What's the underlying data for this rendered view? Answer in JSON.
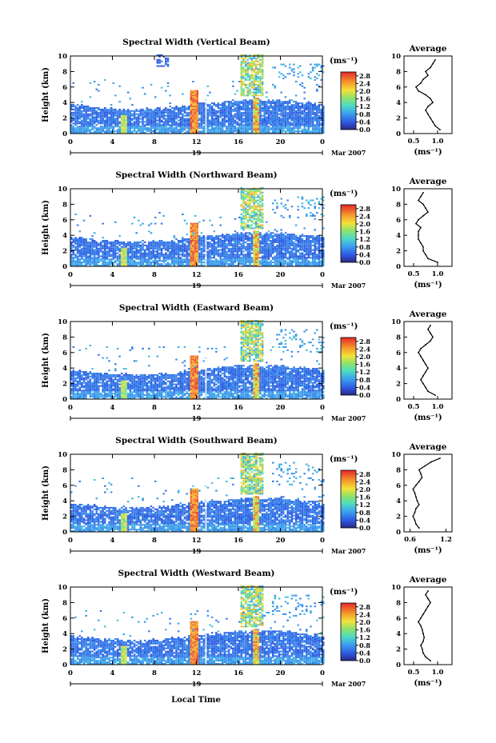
{
  "figure": {
    "xlabel": "Local Time",
    "ylabel": "Height (km)",
    "avg_title": "Average",
    "unit_label": "(ms⁻¹)",
    "day_label": "19",
    "month_label": "Mar 2007"
  },
  "chart_data": [
    {
      "type": "heatmap",
      "title": "Spectral Width (Vertical Beam)",
      "xlabel": "Local Time",
      "ylabel": "Height (km)",
      "x_ticks": [
        "0",
        "4",
        "8",
        "12",
        "16",
        "20",
        "0"
      ],
      "y_ticks": [
        "0",
        "2",
        "4",
        "6",
        "8",
        "10"
      ],
      "xlim": [
        0,
        24
      ],
      "ylim": [
        0,
        10
      ],
      "colorbar": {
        "label": "(ms⁻¹)",
        "ticks": [
          "0.0",
          "0.4",
          "0.8",
          "1.2",
          "1.6",
          "2.0",
          "2.4",
          "2.8"
        ],
        "range": [
          0,
          3.0
        ]
      },
      "average_profile": {
        "title": "Average",
        "xlabel": "(ms⁻¹)",
        "x_ticks": [
          "0.5",
          "1.0"
        ],
        "xlim": [
          0.3,
          1.3
        ],
        "ylim": [
          0,
          10
        ],
        "height": [
          0.5,
          1.0,
          1.5,
          2.0,
          2.5,
          3.0,
          3.5,
          4.0,
          4.5,
          5.0,
          5.5,
          6.0,
          6.5,
          7.0,
          7.5,
          8.0,
          8.5,
          9.0,
          9.5
        ],
        "value": [
          1.05,
          0.95,
          0.9,
          0.85,
          0.8,
          0.75,
          0.8,
          0.9,
          0.85,
          0.75,
          0.6,
          0.55,
          0.65,
          0.7,
          0.8,
          0.75,
          0.85,
          0.9,
          0.95
        ]
      }
    },
    {
      "type": "heatmap",
      "title": "Spectral Width (Northward Beam)",
      "xlabel": "Local Time",
      "ylabel": "Height (km)",
      "x_ticks": [
        "0",
        "4",
        "8",
        "12",
        "16",
        "20",
        "0"
      ],
      "y_ticks": [
        "0",
        "2",
        "4",
        "6",
        "8",
        "10"
      ],
      "xlim": [
        0,
        24
      ],
      "ylim": [
        0,
        10
      ],
      "colorbar": {
        "label": "(ms⁻¹)",
        "ticks": [
          "0.0",
          "0.4",
          "0.8",
          "1.2",
          "1.6",
          "2.0",
          "2.4",
          "2.8"
        ],
        "range": [
          0,
          3.0
        ]
      },
      "average_profile": {
        "title": "Average",
        "xlabel": "(ms⁻¹)",
        "x_ticks": [
          "0.5",
          "1.0"
        ],
        "xlim": [
          0.3,
          1.3
        ],
        "ylim": [
          0,
          10
        ],
        "height": [
          0.5,
          1.0,
          1.5,
          2.0,
          2.5,
          3.0,
          3.5,
          4.0,
          4.5,
          5.0,
          5.5,
          6.0,
          6.5,
          7.0,
          7.5,
          8.0,
          8.5,
          9.0,
          9.5
        ],
        "value": [
          1.0,
          0.8,
          0.75,
          0.7,
          0.7,
          0.65,
          0.6,
          0.6,
          0.6,
          0.65,
          0.55,
          0.6,
          0.7,
          0.8,
          0.75,
          0.7,
          0.6,
          0.65,
          0.7
        ]
      }
    },
    {
      "type": "heatmap",
      "title": "Spectral Width (Eastward Beam)",
      "xlabel": "Local Time",
      "ylabel": "Height (km)",
      "x_ticks": [
        "0",
        "4",
        "8",
        "12",
        "16",
        "20",
        "0"
      ],
      "y_ticks": [
        "0",
        "2",
        "4",
        "6",
        "8",
        "10"
      ],
      "xlim": [
        0,
        24
      ],
      "ylim": [
        0,
        10
      ],
      "colorbar": {
        "label": "(ms⁻¹)",
        "ticks": [
          "0.0",
          "0.4",
          "0.8",
          "1.2",
          "1.6",
          "2.0",
          "2.4",
          "2.8"
        ],
        "range": [
          0,
          3.0
        ]
      },
      "average_profile": {
        "title": "Average",
        "xlabel": "(ms⁻¹)",
        "x_ticks": [
          "0.5",
          "1.0"
        ],
        "xlim": [
          0.3,
          1.3
        ],
        "ylim": [
          0,
          10
        ],
        "height": [
          0.5,
          1.0,
          1.5,
          2.0,
          2.5,
          3.0,
          3.5,
          4.0,
          4.5,
          5.0,
          5.5,
          6.0,
          6.5,
          7.0,
          7.5,
          8.0,
          8.5,
          9.0,
          9.5
        ],
        "value": [
          0.95,
          0.8,
          0.75,
          0.7,
          0.65,
          0.7,
          0.75,
          0.8,
          0.75,
          0.7,
          0.65,
          0.6,
          0.65,
          0.75,
          0.85,
          0.9,
          0.85,
          0.8,
          0.85
        ]
      }
    },
    {
      "type": "heatmap",
      "title": "Spectral Width (Southward Beam)",
      "xlabel": "Local Time",
      "ylabel": "Height (km)",
      "x_ticks": [
        "0",
        "4",
        "8",
        "12",
        "16",
        "20",
        "0"
      ],
      "y_ticks": [
        "0",
        "2",
        "4",
        "6",
        "8",
        "10"
      ],
      "xlim": [
        0,
        24
      ],
      "ylim": [
        0,
        10
      ],
      "colorbar": {
        "label": "(ms⁻¹)",
        "ticks": [
          "0.0",
          "0.4",
          "0.8",
          "1.2",
          "1.6",
          "2.0",
          "2.4",
          "2.8"
        ],
        "range": [
          0,
          3.0
        ]
      },
      "average_profile": {
        "title": "Average",
        "xlabel": "(ms⁻¹)",
        "x_ticks": [
          "0.6",
          "1.2"
        ],
        "xlim": [
          0.5,
          1.3
        ],
        "ylim": [
          0,
          10
        ],
        "height": [
          0.5,
          1.0,
          1.5,
          2.0,
          2.5,
          3.0,
          3.5,
          4.0,
          4.5,
          5.0,
          5.5,
          6.0,
          6.5,
          7.0,
          7.5,
          8.0,
          8.5,
          9.0,
          9.5
        ],
        "value": [
          0.75,
          0.7,
          0.68,
          0.65,
          0.68,
          0.7,
          0.75,
          0.72,
          0.7,
          0.68,
          0.65,
          0.7,
          0.75,
          0.8,
          0.78,
          0.75,
          0.85,
          0.95,
          1.1
        ]
      }
    },
    {
      "type": "heatmap",
      "title": "Spectral Width (Westward Beam)",
      "xlabel": "Local Time",
      "ylabel": "Height (km)",
      "x_ticks": [
        "0",
        "4",
        "8",
        "12",
        "16",
        "20",
        "0"
      ],
      "y_ticks": [
        "0",
        "2",
        "4",
        "6",
        "8",
        "10"
      ],
      "xlim": [
        0,
        24
      ],
      "ylim": [
        0,
        10
      ],
      "colorbar": {
        "label": "(ms⁻¹)",
        "ticks": [
          "0.0",
          "0.4",
          "0.8",
          "1.2",
          "1.6",
          "2.0",
          "2.4",
          "2.8"
        ],
        "range": [
          0,
          3.0
        ]
      },
      "average_profile": {
        "title": "Average",
        "xlabel": "(ms⁻¹)",
        "x_ticks": [
          "0.5",
          "1.0"
        ],
        "xlim": [
          0.3,
          1.3
        ],
        "ylim": [
          0,
          10
        ],
        "height": [
          0.5,
          1.0,
          1.5,
          2.0,
          2.5,
          3.0,
          3.5,
          4.0,
          4.5,
          5.0,
          5.5,
          6.0,
          6.5,
          7.0,
          7.5,
          8.0,
          8.5,
          9.0,
          9.5
        ],
        "value": [
          0.85,
          0.75,
          0.7,
          0.68,
          0.65,
          0.7,
          0.72,
          0.7,
          0.68,
          0.65,
          0.6,
          0.65,
          0.7,
          0.75,
          0.8,
          0.85,
          0.8,
          0.75,
          0.8
        ]
      }
    }
  ]
}
